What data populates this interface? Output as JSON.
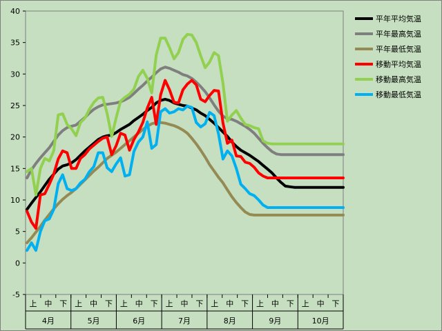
{
  "chart_data": {
    "type": "line",
    "title": "",
    "xlabel": "",
    "ylabel": "",
    "ylim": [
      -5,
      40
    ],
    "yticks": [
      -5,
      0,
      5,
      10,
      15,
      20,
      25,
      30,
      35,
      40
    ],
    "grid": false,
    "legend_position": "right",
    "background": "#c6dfc0",
    "months": [
      "4月",
      "5月",
      "6月",
      "7月",
      "8月",
      "9月",
      "10月"
    ],
    "periods": [
      "上",
      "中",
      "下"
    ],
    "x": [
      1,
      4,
      7,
      10,
      13,
      16,
      19,
      22,
      25,
      28,
      31,
      34,
      37,
      40,
      43,
      46,
      49,
      52,
      55,
      58,
      61,
      64,
      67,
      70,
      73,
      76,
      79,
      82,
      85,
      88,
      91,
      94,
      97,
      100,
      103,
      106,
      109,
      112,
      115,
      118,
      121,
      124,
      127,
      130,
      133,
      136,
      139,
      142,
      145,
      148,
      151,
      154,
      157,
      160,
      163,
      166,
      169,
      172,
      175,
      178,
      181,
      184,
      187,
      190,
      193,
      196,
      199,
      202,
      205,
      208,
      211,
      214
    ],
    "series": [
      {
        "name": "平年平均気温",
        "color": "#000000",
        "values": [
          8.5,
          9.5,
          10.4,
          11.3,
          12.3,
          13.3,
          14.1,
          14.9,
          15.4,
          15.6,
          15.9,
          16.4,
          17.1,
          17.8,
          18.4,
          19.0,
          19.6,
          20.0,
          20.2,
          20.3,
          20.7,
          21.2,
          21.6,
          22.0,
          22.6,
          23.1,
          23.6,
          24.2,
          24.7,
          25.4,
          25.8,
          26.0,
          25.8,
          25.4,
          25.2,
          25.0,
          24.9,
          24.6,
          24.3,
          23.8,
          23.4,
          22.8,
          22.2,
          21.5,
          20.8,
          20.1,
          19.2,
          18.5,
          17.9,
          17.5,
          17.1,
          16.6,
          16.1,
          15.5,
          14.9,
          14.3,
          13.5,
          12.8,
          12.2,
          12.1,
          12.0,
          12.0,
          12.0,
          12.0,
          12.0,
          12.0,
          12.0,
          12.0,
          12.0,
          12.0,
          12.0,
          12.0
        ]
      },
      {
        "name": "平年最高気温",
        "color": "#7f7f7f",
        "values": [
          13.5,
          14.8,
          15.8,
          16.7,
          17.5,
          18.3,
          19.3,
          20.3,
          21.0,
          21.5,
          21.7,
          21.9,
          22.5,
          23.1,
          23.8,
          24.4,
          24.8,
          25.1,
          25.2,
          25.3,
          25.4,
          25.6,
          25.9,
          26.3,
          26.9,
          27.6,
          28.2,
          28.9,
          29.5,
          30.2,
          30.8,
          31.1,
          30.9,
          30.6,
          30.3,
          29.9,
          29.7,
          29.3,
          28.7,
          28.0,
          27.2,
          26.2,
          25.1,
          24.1,
          23.3,
          22.9,
          22.8,
          22.5,
          22.1,
          21.7,
          21.2,
          20.6,
          19.8,
          19.0,
          18.3,
          17.7,
          17.3,
          17.2,
          17.2,
          17.2,
          17.2,
          17.2,
          17.2,
          17.2,
          17.2,
          17.2,
          17.2,
          17.2,
          17.2,
          17.2,
          17.2,
          17.2
        ]
      },
      {
        "name": "平年最低気温",
        "color": "#948a54",
        "values": [
          3.2,
          4.0,
          4.9,
          5.8,
          6.8,
          7.7,
          8.6,
          9.4,
          10.1,
          10.7,
          11.2,
          11.8,
          12.5,
          13.2,
          13.9,
          14.6,
          15.2,
          15.9,
          16.6,
          17.1,
          17.6,
          18.2,
          18.8,
          19.4,
          20.0,
          20.6,
          21.2,
          21.7,
          22.1,
          22.3,
          22.3,
          22.2,
          22.0,
          21.8,
          21.5,
          21.1,
          20.6,
          19.8,
          18.9,
          17.9,
          16.8,
          15.6,
          14.6,
          13.6,
          12.7,
          11.6,
          10.5,
          9.6,
          8.8,
          8.1,
          7.7,
          7.6,
          7.6,
          7.6,
          7.6,
          7.6,
          7.6,
          7.6,
          7.6,
          7.6,
          7.6,
          7.6,
          7.6,
          7.6,
          7.6,
          7.6,
          7.6,
          7.6,
          7.6,
          7.6,
          7.6,
          7.6
        ]
      },
      {
        "name": "移動平均気温",
        "color": "#ff0000",
        "values": [
          8.2,
          6.5,
          5.5,
          10.8,
          11.0,
          12.5,
          14.1,
          16.5,
          17.8,
          17.5,
          15.0,
          15.0,
          16.6,
          17.2,
          18.1,
          18.7,
          19.3,
          19.8,
          20.0,
          17.2,
          18.6,
          20.6,
          20.3,
          17.9,
          19.6,
          20.8,
          22.3,
          24.6,
          26.3,
          22.0,
          26.7,
          29.0,
          27.5,
          25.5,
          25.4,
          27.5,
          28.4,
          29.0,
          28.3,
          26.0,
          25.6,
          26.6,
          27.4,
          27.3,
          22.2,
          19.0,
          19.5,
          17.0,
          16.9,
          16.0,
          15.8,
          15.2,
          14.3,
          13.8,
          13.5,
          13.5,
          13.5,
          13.5,
          13.5,
          13.5,
          13.5,
          13.5,
          13.5,
          13.5,
          13.5,
          13.5,
          13.5,
          13.5,
          13.5,
          13.5,
          13.5,
          13.5
        ]
      },
      {
        "name": "移動最高気温",
        "color": "#92d050",
        "values": [
          14.5,
          15.0,
          10.8,
          15.0,
          16.6,
          16.2,
          17.8,
          23.5,
          23.7,
          22.0,
          21.3,
          20.2,
          22.3,
          23.0,
          24.4,
          25.5,
          26.2,
          26.3,
          23.7,
          20.1,
          23.0,
          25.7,
          26.3,
          26.8,
          27.6,
          29.6,
          30.6,
          29.3,
          27.0,
          33.0,
          35.7,
          35.7,
          34.2,
          32.4,
          33.4,
          35.5,
          36.3,
          36.2,
          35.0,
          32.9,
          31.0,
          31.9,
          33.4,
          32.9,
          28.5,
          22.5,
          23.5,
          24.2,
          23.0,
          22.0,
          21.8,
          21.5,
          21.3,
          19.4,
          19.0,
          18.9,
          18.9,
          18.9,
          18.9,
          18.9,
          18.9,
          18.9,
          18.9,
          18.9,
          18.9,
          18.9,
          18.9,
          18.9,
          18.9,
          18.9,
          18.9,
          18.9
        ]
      },
      {
        "name": "移動最低気温",
        "color": "#00b0f0",
        "values": [
          2.0,
          3.2,
          2.0,
          5.0,
          6.7,
          7.0,
          8.5,
          12.6,
          14.0,
          11.8,
          11.5,
          11.8,
          12.7,
          13.3,
          14.5,
          15.3,
          17.5,
          17.5,
          15.1,
          14.5,
          15.7,
          16.7,
          13.8,
          14.0,
          17.7,
          19.2,
          20.0,
          22.4,
          18.2,
          18.8,
          24.0,
          24.5,
          23.8,
          24.0,
          24.5,
          24.3,
          24.9,
          24.7,
          22.3,
          21.6,
          22.1,
          23.9,
          23.4,
          20.5,
          16.5,
          17.8,
          17.0,
          15.0,
          12.5,
          11.8,
          11.0,
          10.7,
          10.0,
          9.2,
          8.8,
          8.8,
          8.8,
          8.8,
          8.8,
          8.8,
          8.8,
          8.8,
          8.8,
          8.8,
          8.8,
          8.8,
          8.8,
          8.8,
          8.8,
          8.8,
          8.8,
          8.8
        ]
      }
    ]
  }
}
